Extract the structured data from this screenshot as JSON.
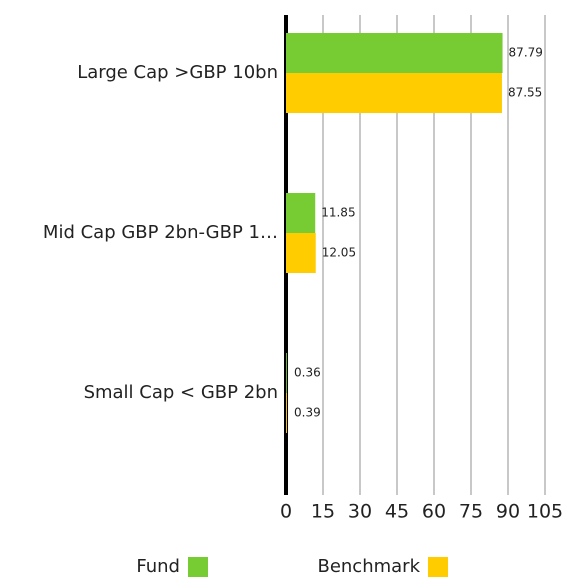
{
  "chart_data": {
    "type": "hbar",
    "categories": [
      "Large Cap >GBP 10bn",
      "Mid Cap GBP 2bn-GBP 1…",
      "Small Cap < GBP 2bn"
    ],
    "series": [
      {
        "name": "Fund",
        "color": "#77cc33",
        "values": [
          87.79,
          11.85,
          0.36
        ]
      },
      {
        "name": "Benchmark",
        "color": "#ffcc00",
        "values": [
          87.55,
          12.05,
          0.39
        ]
      }
    ],
    "xlim": [
      0,
      105
    ],
    "xticks": [
      0,
      15,
      30,
      45,
      60,
      75,
      90,
      105
    ],
    "grid": true,
    "legend": "bottom"
  }
}
